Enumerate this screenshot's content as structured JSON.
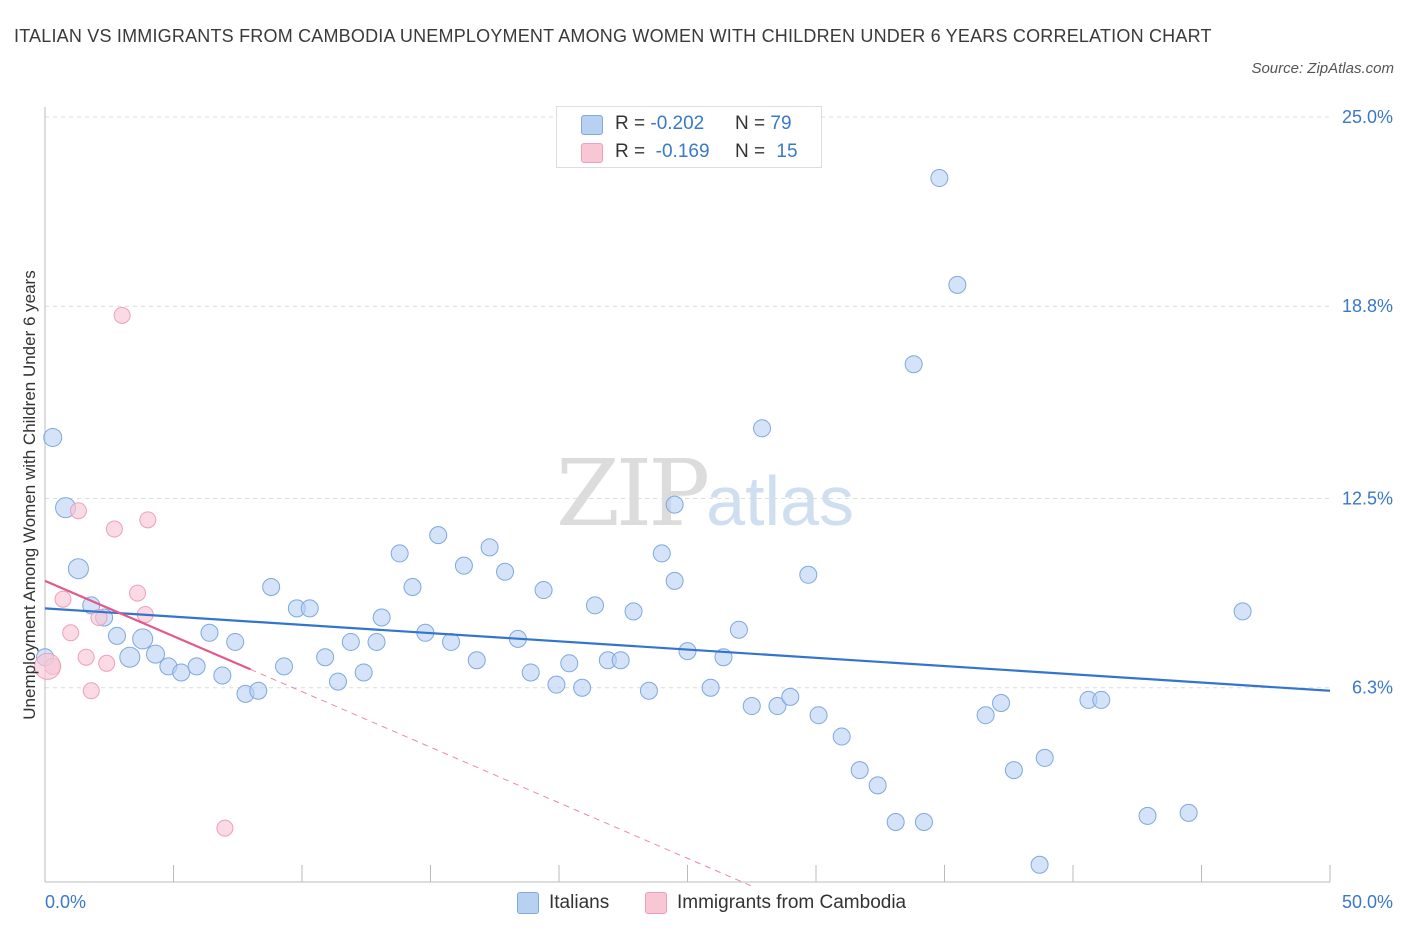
{
  "title": "ITALIAN VS IMMIGRANTS FROM CAMBODIA UNEMPLOYMENT AMONG WOMEN WITH CHILDREN UNDER 6 YEARS CORRELATION CHART",
  "source": "Source: ZipAtlas.com",
  "watermark": {
    "part1": "ZIP",
    "part2": "atlas"
  },
  "legend_top": [
    {
      "r_label": "R = ",
      "r_value": "-0.202",
      "n_label": "N = ",
      "n_value": "79",
      "color": "#b8d1f3"
    },
    {
      "r_label": "R = ",
      "r_value": " -0.169",
      "n_label": "N = ",
      "n_value": "15",
      "color": "#f8c6d5"
    }
  ],
  "chart_data": {
    "type": "scatter",
    "title": "ITALIAN VS IMMIGRANTS FROM CAMBODIA UNEMPLOYMENT AMONG WOMEN WITH CHILDREN UNDER 6 YEARS CORRELATION CHART",
    "ylabel": "Unemployment Among Women with Children Under 6 years",
    "xlim": [
      0,
      50
    ],
    "ylim": [
      0,
      25
    ],
    "x_tick_labels": [
      "0.0%",
      "50.0%"
    ],
    "y_ticks": [
      6.3,
      12.5,
      18.8,
      25.0
    ],
    "y_tick_labels": [
      "6.3%",
      "12.5%",
      "18.8%",
      "25.0%"
    ],
    "grid": "horizontal dashed",
    "legend_position": "bottom",
    "series": [
      {
        "name": "Italians",
        "color": "#b8d1f3",
        "stroke": "#7fa8de",
        "trend": {
          "x": [
            0,
            50
          ],
          "y": [
            8.9,
            6.2
          ],
          "color": "#3374cf"
        },
        "points": [
          [
            0.3,
            14.5
          ],
          [
            0.8,
            12.2
          ],
          [
            1.3,
            10.2
          ],
          [
            1.8,
            9.0
          ],
          [
            2.3,
            8.6
          ],
          [
            2.8,
            8.0
          ],
          [
            3.3,
            7.3
          ],
          [
            3.8,
            7.9
          ],
          [
            4.3,
            7.4
          ],
          [
            4.8,
            7.0
          ],
          [
            5.3,
            6.8
          ],
          [
            5.9,
            7.0
          ],
          [
            6.4,
            8.1
          ],
          [
            6.9,
            6.7
          ],
          [
            7.4,
            7.8
          ],
          [
            7.8,
            6.1
          ],
          [
            8.3,
            6.2
          ],
          [
            8.8,
            9.6
          ],
          [
            9.3,
            7.0
          ],
          [
            9.8,
            8.9
          ],
          [
            10.3,
            8.9
          ],
          [
            10.9,
            7.3
          ],
          [
            11.4,
            6.5
          ],
          [
            11.9,
            7.8
          ],
          [
            12.4,
            6.8
          ],
          [
            12.9,
            7.8
          ],
          [
            13.1,
            8.6
          ],
          [
            13.8,
            10.7
          ],
          [
            14.3,
            9.6
          ],
          [
            14.8,
            8.1
          ],
          [
            15.3,
            11.3
          ],
          [
            15.8,
            7.8
          ],
          [
            16.3,
            10.3
          ],
          [
            16.8,
            7.2
          ],
          [
            17.3,
            10.9
          ],
          [
            17.9,
            10.1
          ],
          [
            18.4,
            7.9
          ],
          [
            18.9,
            6.8
          ],
          [
            19.4,
            9.5
          ],
          [
            19.9,
            6.4
          ],
          [
            20.4,
            7.1
          ],
          [
            20.9,
            6.3
          ],
          [
            21.4,
            9.0
          ],
          [
            21.9,
            7.2
          ],
          [
            22.4,
            7.2
          ],
          [
            22.9,
            8.8
          ],
          [
            23.5,
            6.2
          ],
          [
            24.0,
            10.7
          ],
          [
            24.5,
            9.8
          ],
          [
            24.5,
            12.3
          ],
          [
            25.0,
            7.5
          ],
          [
            25.9,
            6.3
          ],
          [
            26.4,
            7.3
          ],
          [
            27.0,
            8.2
          ],
          [
            27.5,
            5.7
          ],
          [
            27.9,
            14.8
          ],
          [
            28.5,
            5.7
          ],
          [
            29.0,
            6.0
          ],
          [
            29.7,
            10.0
          ],
          [
            30.1,
            5.4
          ],
          [
            31.0,
            4.7
          ],
          [
            31.7,
            3.6
          ],
          [
            32.4,
            3.1
          ],
          [
            33.1,
            1.9
          ],
          [
            33.8,
            16.9
          ],
          [
            34.2,
            1.9
          ],
          [
            34.8,
            23.0
          ],
          [
            35.5,
            19.5
          ],
          [
            36.6,
            5.4
          ],
          [
            37.2,
            5.8
          ],
          [
            37.7,
            3.6
          ],
          [
            38.7,
            0.5
          ],
          [
            38.9,
            4.0
          ],
          [
            40.6,
            5.9
          ],
          [
            41.1,
            5.9
          ],
          [
            42.9,
            2.1
          ],
          [
            44.5,
            2.2
          ],
          [
            46.6,
            8.8
          ],
          [
            0.0,
            7.3
          ]
        ]
      },
      {
        "name": "Immigrants from Cambodia",
        "color": "#f8c6d5",
        "stroke": "#eea0b8",
        "trend": {
          "x": [
            0,
            8
          ],
          "y": [
            9.8,
            6.9
          ],
          "color": "#e05a8b"
        },
        "trend_extension": {
          "x": [
            8,
            27.5
          ],
          "y": [
            6.9,
            -0.2
          ]
        },
        "points": [
          [
            0.3,
            7.0
          ],
          [
            0.7,
            9.2
          ],
          [
            1.0,
            8.1
          ],
          [
            1.3,
            12.1
          ],
          [
            1.6,
            7.3
          ],
          [
            1.8,
            6.2
          ],
          [
            2.1,
            8.6
          ],
          [
            2.4,
            7.1
          ],
          [
            2.7,
            11.5
          ],
          [
            3.0,
            18.5
          ],
          [
            3.6,
            9.4
          ],
          [
            3.9,
            8.7
          ],
          [
            4.0,
            11.8
          ],
          [
            7.0,
            1.7
          ],
          [
            0.1,
            7.0
          ]
        ]
      }
    ]
  },
  "legend_bottom": [
    {
      "label": "Italians",
      "color": "#b8d1f3"
    },
    {
      "label": "Immigrants from Cambodia",
      "color": "#f8c6d5"
    }
  ]
}
